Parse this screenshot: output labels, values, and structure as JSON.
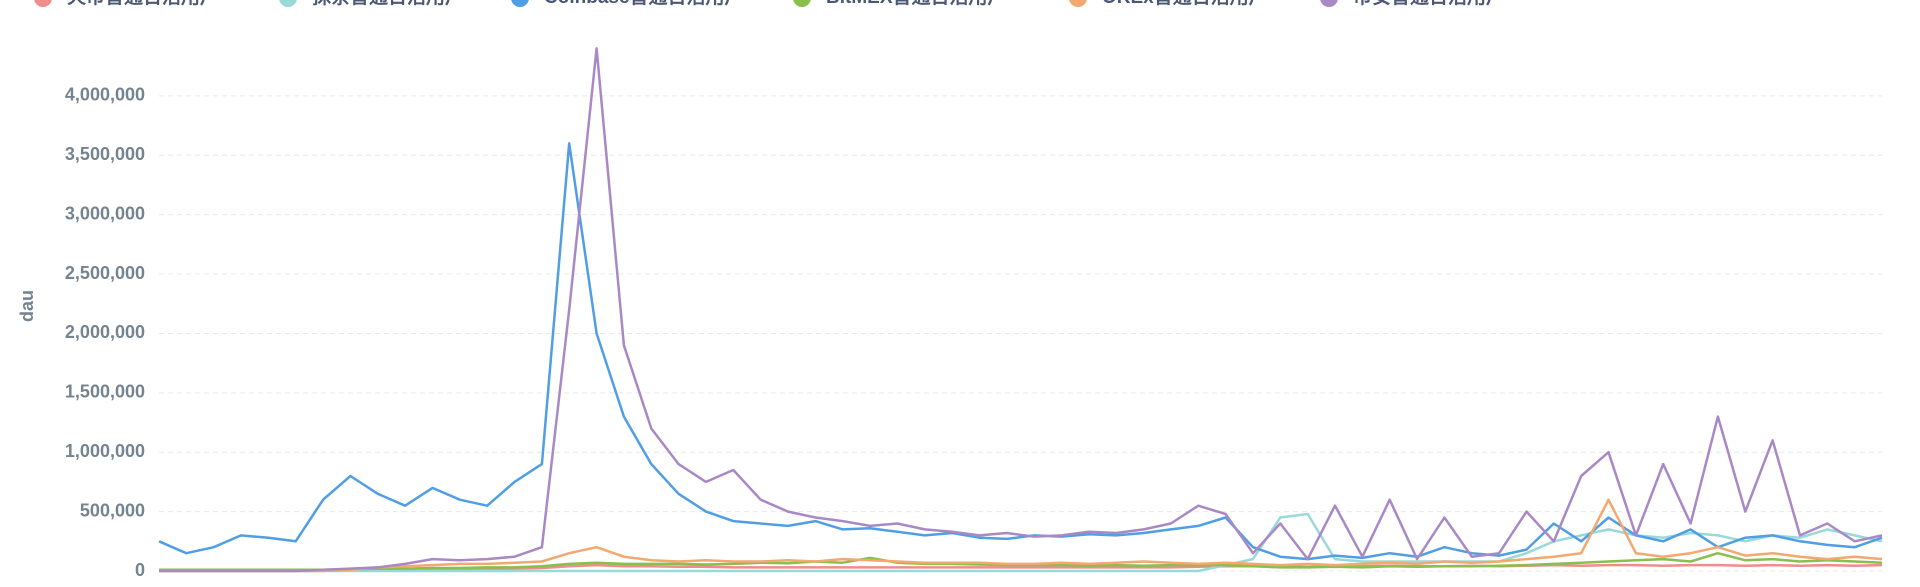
{
  "chart_data": {
    "type": "line",
    "y_label": "dau",
    "categories": [
      null,
      null,
      null,
      null,
      null,
      null,
      null,
      null,
      null,
      null,
      null,
      null,
      null,
      null,
      null,
      null,
      null,
      null,
      null,
      null,
      null,
      null,
      null,
      null,
      null,
      null,
      null,
      null,
      null,
      null,
      null,
      null,
      null,
      null,
      null,
      null,
      null,
      null,
      null,
      null,
      null,
      null,
      null,
      null,
      null,
      null,
      null,
      null,
      null,
      null,
      null,
      null,
      null,
      null,
      null,
      null,
      null,
      null,
      null,
      null,
      null,
      null,
      null,
      null
    ],
    "ylim": [
      0,
      4500000
    ],
    "yticks": [
      0,
      {
        "value": 500000,
        "label": "500,000"
      },
      {
        "value": 1000000,
        "label": "1,000,000"
      },
      {
        "value": 1500000,
        "label": "1,500,000"
      },
      {
        "value": 2000000,
        "label": "2,000,000"
      },
      {
        "value": 2500000,
        "label": "2,500,000"
      },
      {
        "value": 3000000,
        "label": "3,000,000"
      },
      {
        "value": 3500000,
        "label": "3,500,000"
      },
      {
        "value": 4000000,
        "label": "4,000,000"
      }
    ],
    "grid": true,
    "series": [
      {
        "name": "火币普通日活用户",
        "color": "#EF8C8C",
        "values": [
          5000,
          5000,
          5000,
          5000,
          5000,
          5000,
          8000,
          15000,
          15000,
          15000,
          15000,
          15000,
          15000,
          20000,
          25000,
          40000,
          50000,
          40000,
          40000,
          35000,
          35000,
          30000,
          30000,
          30000,
          30000,
          30000,
          30000,
          30000,
          30000,
          30000,
          30000,
          30000,
          30000,
          30000,
          30000,
          30000,
          30000,
          30000,
          35000,
          40000,
          40000,
          40000,
          35000,
          40000,
          40000,
          45000,
          40000,
          40000,
          45000,
          40000,
          45000,
          50000,
          45000,
          50000,
          50000,
          45000,
          50000,
          50000,
          45000,
          50000,
          45000,
          50000,
          45000,
          50000
        ]
      },
      {
        "name": "抹茶普通日活用户",
        "color": "#98D9D9",
        "values": [
          0,
          0,
          0,
          0,
          0,
          0,
          0,
          0,
          0,
          0,
          0,
          0,
          0,
          0,
          0,
          0,
          0,
          0,
          0,
          0,
          0,
          0,
          0,
          0,
          0,
          0,
          0,
          0,
          0,
          0,
          0,
          0,
          0,
          0,
          0,
          0,
          0,
          0,
          0,
          50000,
          100000,
          450000,
          480000,
          100000,
          80000,
          80000,
          80000,
          80000,
          80000,
          80000,
          150000,
          250000,
          300000,
          350000,
          300000,
          280000,
          320000,
          300000,
          250000,
          300000,
          280000,
          350000,
          300000,
          250000
        ]
      },
      {
        "name": "Coinbase普通日活用户",
        "color": "#509EE3",
        "values": [
          250000,
          150000,
          200000,
          300000,
          280000,
          250000,
          600000,
          800000,
          650000,
          550000,
          700000,
          600000,
          550000,
          750000,
          900000,
          3600000,
          2000000,
          1300000,
          900000,
          650000,
          500000,
          420000,
          400000,
          380000,
          420000,
          350000,
          360000,
          330000,
          300000,
          320000,
          280000,
          270000,
          300000,
          290000,
          310000,
          300000,
          320000,
          350000,
          380000,
          450000,
          200000,
          120000,
          100000,
          130000,
          110000,
          150000,
          120000,
          200000,
          150000,
          130000,
          180000,
          400000,
          250000,
          450000,
          300000,
          250000,
          350000,
          200000,
          280000,
          300000,
          250000,
          220000,
          200000,
          280000
        ]
      },
      {
        "name": "BitMEX普通日活用户",
        "color": "#88BF4D",
        "values": [
          10000,
          10000,
          10000,
          10000,
          10000,
          10000,
          10000,
          15000,
          20000,
          20000,
          25000,
          25000,
          30000,
          30000,
          40000,
          60000,
          70000,
          60000,
          60000,
          60000,
          55000,
          60000,
          70000,
          65000,
          80000,
          70000,
          110000,
          70000,
          60000,
          60000,
          55000,
          50000,
          50000,
          50000,
          45000,
          50000,
          45000,
          50000,
          50000,
          50000,
          40000,
          30000,
          30000,
          35000,
          30000,
          40000,
          35000,
          40000,
          40000,
          45000,
          50000,
          60000,
          70000,
          80000,
          90000,
          100000,
          80000,
          150000,
          90000,
          100000,
          80000,
          90000,
          80000,
          70000
        ]
      },
      {
        "name": "OKEx普通日活用户",
        "color": "#F2A86F",
        "values": [
          0,
          0,
          0,
          0,
          0,
          0,
          0,
          10000,
          30000,
          40000,
          50000,
          60000,
          60000,
          70000,
          80000,
          150000,
          200000,
          120000,
          90000,
          80000,
          90000,
          80000,
          80000,
          90000,
          80000,
          100000,
          90000,
          80000,
          70000,
          70000,
          70000,
          60000,
          60000,
          70000,
          60000,
          70000,
          80000,
          70000,
          60000,
          70000,
          60000,
          50000,
          60000,
          50000,
          60000,
          70000,
          60000,
          80000,
          70000,
          80000,
          100000,
          120000,
          150000,
          600000,
          150000,
          120000,
          150000,
          200000,
          130000,
          150000,
          120000,
          100000,
          120000,
          100000
        ]
      },
      {
        "name": "币安普通日活用户",
        "color": "#A989C5",
        "values": [
          0,
          0,
          0,
          0,
          0,
          0,
          10000,
          20000,
          30000,
          60000,
          100000,
          90000,
          100000,
          120000,
          200000,
          2200000,
          4400000,
          1900000,
          1200000,
          900000,
          750000,
          850000,
          600000,
          500000,
          450000,
          420000,
          380000,
          400000,
          350000,
          330000,
          300000,
          320000,
          290000,
          300000,
          330000,
          320000,
          350000,
          400000,
          550000,
          480000,
          150000,
          400000,
          100000,
          550000,
          120000,
          600000,
          100000,
          450000,
          120000,
          150000,
          500000,
          250000,
          800000,
          1000000,
          300000,
          900000,
          400000,
          1300000,
          500000,
          1100000,
          300000,
          400000,
          250000,
          300000
        ]
      }
    ]
  }
}
